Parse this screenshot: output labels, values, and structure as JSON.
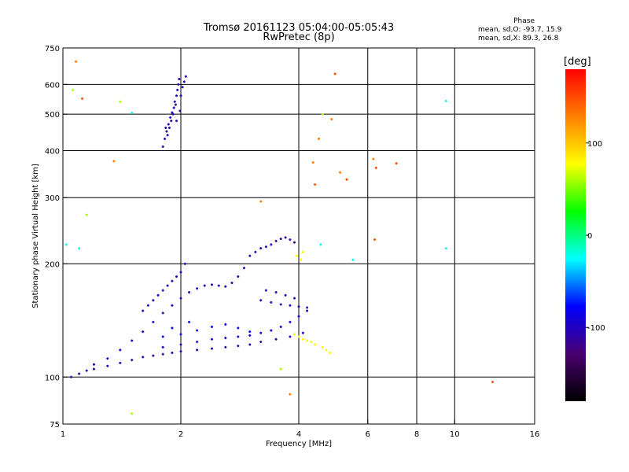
{
  "header": {
    "title_line1": "Tromsø 20161123 05:04:00-05:05:43",
    "title_line2": "RwPretec (8p)",
    "phase_heading": "Phase",
    "phase_line1": "mean, sd,O: -93.7, 15.9",
    "phase_line2": "mean, sd,X:  89.3, 26.8"
  },
  "chart_data": {
    "type": "scatter",
    "xlabel": "Frequency [MHz]",
    "ylabel": "Stationary phase Virtual Height [km]",
    "x_scale": "log",
    "y_scale": "log",
    "xlim": [
      1,
      16
    ],
    "ylim": [
      75,
      750
    ],
    "x_ticks": [
      1,
      2,
      4,
      6,
      8,
      10,
      16
    ],
    "y_ticks": [
      75,
      100,
      200,
      300,
      400,
      500,
      600,
      750
    ],
    "x_grid": [
      2,
      4,
      6,
      8,
      10
    ],
    "y_grid": [
      100,
      200,
      300,
      400,
      500,
      600
    ],
    "colorbar": {
      "label": "[deg]",
      "range": [
        -180,
        180
      ],
      "ticks": [
        100,
        0,
        -100
      ],
      "colors": [
        "#000000",
        "#4a0070",
        "#0000ff",
        "#00ffff",
        "#00ff00",
        "#ffff00",
        "#ff8000",
        "#ff0000"
      ]
    },
    "traces": [
      {
        "name": "",
        "phase": -105,
        "points": [
          [
            1.8,
            410
          ],
          [
            1.82,
            430
          ],
          [
            1.84,
            450
          ],
          [
            1.86,
            470
          ],
          [
            1.88,
            490
          ],
          [
            1.9,
            505
          ],
          [
            1.92,
            520
          ],
          [
            1.93,
            540
          ],
          [
            1.95,
            560
          ],
          [
            1.96,
            580
          ],
          [
            1.97,
            600
          ],
          [
            1.98,
            620
          ],
          [
            1.85,
            440
          ],
          [
            1.87,
            460
          ],
          [
            1.89,
            480
          ],
          [
            1.91,
            500
          ],
          [
            1.94,
            530
          ],
          [
            1.99,
            510
          ],
          [
            2.0,
            560
          ],
          [
            2.02,
            590
          ],
          [
            2.04,
            610
          ],
          [
            2.06,
            630
          ],
          [
            1.83,
            460
          ],
          [
            1.95,
            480
          ]
        ]
      },
      {
        "name": "",
        "phase": -110,
        "points": [
          [
            1.05,
            100
          ],
          [
            1.1,
            102
          ],
          [
            1.15,
            104
          ],
          [
            1.2,
            105
          ],
          [
            1.3,
            107
          ],
          [
            1.4,
            109
          ],
          [
            1.5,
            111
          ],
          [
            1.6,
            113
          ],
          [
            1.7,
            114
          ],
          [
            1.8,
            115
          ],
          [
            1.9,
            116
          ],
          [
            2.0,
            117
          ],
          [
            2.2,
            118
          ],
          [
            2.4,
            119
          ],
          [
            2.6,
            120
          ],
          [
            2.8,
            121
          ],
          [
            3.0,
            122
          ],
          [
            3.2,
            124
          ],
          [
            3.5,
            126
          ],
          [
            3.8,
            128
          ],
          [
            4.1,
            131
          ]
        ]
      },
      {
        "name": "",
        "phase": -100,
        "points": [
          [
            1.2,
            108
          ],
          [
            1.3,
            112
          ],
          [
            1.4,
            118
          ],
          [
            1.5,
            125
          ],
          [
            1.6,
            132
          ],
          [
            1.7,
            140
          ],
          [
            1.8,
            148
          ],
          [
            1.9,
            155
          ],
          [
            2.0,
            162
          ],
          [
            2.1,
            168
          ],
          [
            2.2,
            172
          ],
          [
            2.3,
            175
          ],
          [
            2.4,
            176
          ],
          [
            2.5,
            175
          ],
          [
            2.6,
            174
          ],
          [
            2.7,
            178
          ],
          [
            2.8,
            185
          ],
          [
            2.9,
            195
          ]
        ]
      },
      {
        "name": "",
        "phase": -95,
        "points": [
          [
            1.8,
            120
          ],
          [
            2.0,
            122
          ],
          [
            2.2,
            124
          ],
          [
            2.4,
            126
          ],
          [
            2.6,
            127
          ],
          [
            2.8,
            128
          ],
          [
            3.0,
            129
          ],
          [
            3.2,
            131
          ],
          [
            3.4,
            133
          ],
          [
            3.6,
            136
          ],
          [
            3.8,
            140
          ],
          [
            4.0,
            145
          ],
          [
            4.2,
            150
          ]
        ]
      },
      {
        "name": "",
        "phase": -80,
        "points": [
          [
            2.0,
            130
          ],
          [
            2.2,
            133
          ],
          [
            2.4,
            136
          ],
          [
            2.6,
            138
          ],
          [
            2.8,
            135
          ],
          [
            3.0,
            132
          ],
          [
            1.8,
            128
          ],
          [
            1.9,
            135
          ],
          [
            2.1,
            140
          ]
        ]
      },
      {
        "name": "",
        "phase": -100,
        "points": [
          [
            1.6,
            150
          ],
          [
            1.7,
            160
          ],
          [
            1.8,
            170
          ],
          [
            1.9,
            180
          ],
          [
            2.0,
            190
          ],
          [
            2.05,
            200
          ],
          [
            1.75,
            165
          ],
          [
            1.85,
            175
          ],
          [
            1.95,
            185
          ],
          [
            1.65,
            155
          ]
        ]
      },
      {
        "name": "",
        "phase": -105,
        "points": [
          [
            3.2,
            160
          ],
          [
            3.4,
            158
          ],
          [
            3.6,
            156
          ],
          [
            3.8,
            155
          ],
          [
            4.0,
            154
          ],
          [
            4.2,
            153
          ],
          [
            3.3,
            170
          ],
          [
            3.5,
            168
          ],
          [
            3.7,
            165
          ],
          [
            3.9,
            162
          ]
        ]
      },
      {
        "name": "",
        "phase": -110,
        "points": [
          [
            3.0,
            210
          ],
          [
            3.1,
            215
          ],
          [
            3.2,
            220
          ],
          [
            3.3,
            222
          ],
          [
            3.4,
            225
          ],
          [
            3.5,
            230
          ],
          [
            3.6,
            233
          ],
          [
            3.7,
            235
          ],
          [
            3.8,
            232
          ],
          [
            3.9,
            228
          ]
        ]
      },
      {
        "name": "",
        "phase": 80,
        "points": [
          [
            3.9,
            130
          ],
          [
            4.0,
            128
          ],
          [
            4.1,
            126
          ],
          [
            4.2,
            125
          ],
          [
            4.3,
            124
          ],
          [
            4.4,
            122
          ],
          [
            4.6,
            120
          ],
          [
            4.7,
            118
          ],
          [
            4.8,
            116
          ],
          [
            3.95,
            210
          ],
          [
            4.05,
            205
          ],
          [
            4.1,
            215
          ]
        ]
      },
      {
        "name": "",
        "phase": -20,
        "points": [
          [
            1.1,
            220
          ],
          [
            1.02,
            225
          ],
          [
            1.5,
            504
          ],
          [
            9.5,
            220
          ],
          [
            9.5,
            542
          ],
          [
            5.5,
            205
          ],
          [
            4.55,
            225
          ]
        ]
      },
      {
        "name": "",
        "phase": 130,
        "points": [
          [
            1.08,
            690
          ],
          [
            1.35,
            375
          ],
          [
            3.2,
            293
          ],
          [
            4.5,
            430
          ],
          [
            4.85,
            485
          ],
          [
            5.1,
            350
          ],
          [
            6.2,
            380
          ],
          [
            4.35,
            372
          ],
          [
            3.8,
            90
          ]
        ]
      },
      {
        "name": "",
        "phase": 150,
        "points": [
          [
            1.12,
            550
          ],
          [
            4.4,
            325
          ],
          [
            6.25,
            232
          ],
          [
            12.5,
            97
          ],
          [
            7.1,
            370
          ],
          [
            5.3,
            335
          ],
          [
            4.95,
            640
          ],
          [
            6.3,
            360
          ]
        ]
      },
      {
        "name": "",
        "phase": 60,
        "points": [
          [
            1.4,
            540
          ],
          [
            1.06,
            580
          ],
          [
            1.5,
            80
          ],
          [
            3.6,
            105
          ],
          [
            4.6,
            500
          ],
          [
            1.15,
            270
          ]
        ]
      }
    ]
  }
}
